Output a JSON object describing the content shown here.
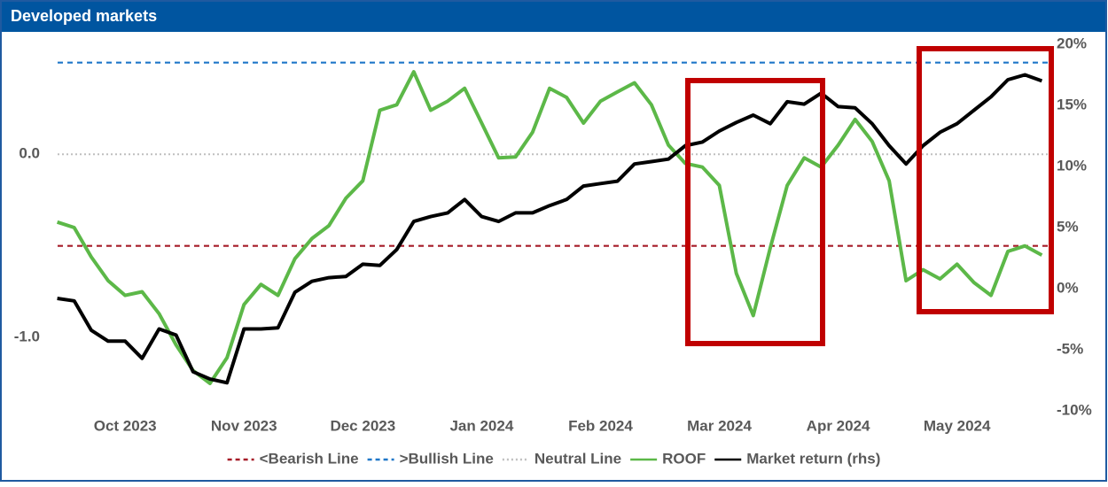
{
  "chart_data": {
    "type": "line",
    "title": "Developed markets",
    "categories": [
      null,
      null,
      null,
      null,
      "Oct 2023",
      null,
      null,
      null,
      null,
      null,
      null,
      "Nov 2023",
      null,
      null,
      null,
      null,
      null,
      null,
      "Dec 2023",
      null,
      null,
      null,
      null,
      null,
      null,
      "Jan 2024",
      null,
      null,
      null,
      null,
      null,
      null,
      "Feb 2024",
      null,
      null,
      null,
      null,
      null,
      null,
      "Mar 2024",
      null,
      null,
      null,
      null,
      null,
      null,
      "Apr 2024",
      null,
      null,
      null,
      null,
      null,
      null,
      "May 2024",
      null,
      null,
      null,
      null,
      null
    ],
    "series": [
      {
        "name": "ROOF",
        "color": "#5cb848",
        "values": [
          -0.37,
          -0.4,
          -0.56,
          -0.69,
          -0.77,
          -0.75,
          -0.87,
          -1.04,
          -1.18,
          -1.25,
          -1.11,
          -0.82,
          -0.71,
          -0.77,
          -0.57,
          -0.46,
          -0.39,
          -0.24,
          -0.145,
          0.24,
          0.27,
          0.45,
          0.24,
          0.29,
          0.36,
          0.17,
          -0.02,
          -0.015,
          0.12,
          0.36,
          0.31,
          0.17,
          0.29,
          0.34,
          0.39,
          0.27,
          0.05,
          -0.05,
          -0.07,
          -0.17,
          -0.65,
          -0.88,
          -0.51,
          -0.17,
          -0.02,
          -0.07,
          0.05,
          0.19,
          0.07,
          -0.145,
          -0.69,
          -0.63,
          -0.68,
          -0.6,
          -0.7,
          -0.77,
          -0.53,
          -0.5,
          -0.55
        ]
      },
      {
        "name": "Market return (rhs)",
        "color": "#000000",
        "axis": "y2",
        "values": [
          -0.8,
          -1.0,
          -3.4,
          -4.3,
          -4.3,
          -5.7,
          -3.3,
          -3.8,
          -6.8,
          -7.4,
          -7.7,
          -3.3,
          -3.3,
          -3.2,
          -0.3,
          0.6,
          0.9,
          1.0,
          2.0,
          1.9,
          3.2,
          5.5,
          5.9,
          6.2,
          7.3,
          5.9,
          5.5,
          6.2,
          6.2,
          6.8,
          7.3,
          8.4,
          8.6,
          8.8,
          10.2,
          10.4,
          10.6,
          11.7,
          12.0,
          12.9,
          13.6,
          14.2,
          13.5,
          15.3,
          15.1,
          16.0,
          14.9,
          14.8,
          13.5,
          11.7,
          10.2,
          11.7,
          12.8,
          13.5,
          14.6,
          15.7,
          17.1,
          17.5,
          17.0
        ]
      }
    ],
    "hlines": [
      {
        "name": "<Bearish Line",
        "value": -0.5,
        "color": "#a61c28",
        "dash": true
      },
      {
        "name": ">Bullish Line",
        "value": 0.5,
        "color": "#1f77c8",
        "dash": true
      },
      {
        "name": "Neutral Line",
        "value": 0,
        "color": "#bfbfbf",
        "dash": true
      }
    ],
    "ylim": [
      -1.4,
      0.6
    ],
    "yticks": [
      {
        "value": 0,
        "label": "0.0"
      },
      {
        "value": -1,
        "label": "-1.0"
      }
    ],
    "y2lim": [
      -10,
      20
    ],
    "y2ticks": [
      {
        "value": 20,
        "label": "20%"
      },
      {
        "value": 15,
        "label": "15%"
      },
      {
        "value": 10,
        "label": "10%"
      },
      {
        "value": 5,
        "label": "5%"
      },
      {
        "value": 0,
        "label": "0%"
      },
      {
        "value": -5,
        "label": "-5%"
      },
      {
        "value": -10,
        "label": "-10%"
      }
    ]
  }
}
